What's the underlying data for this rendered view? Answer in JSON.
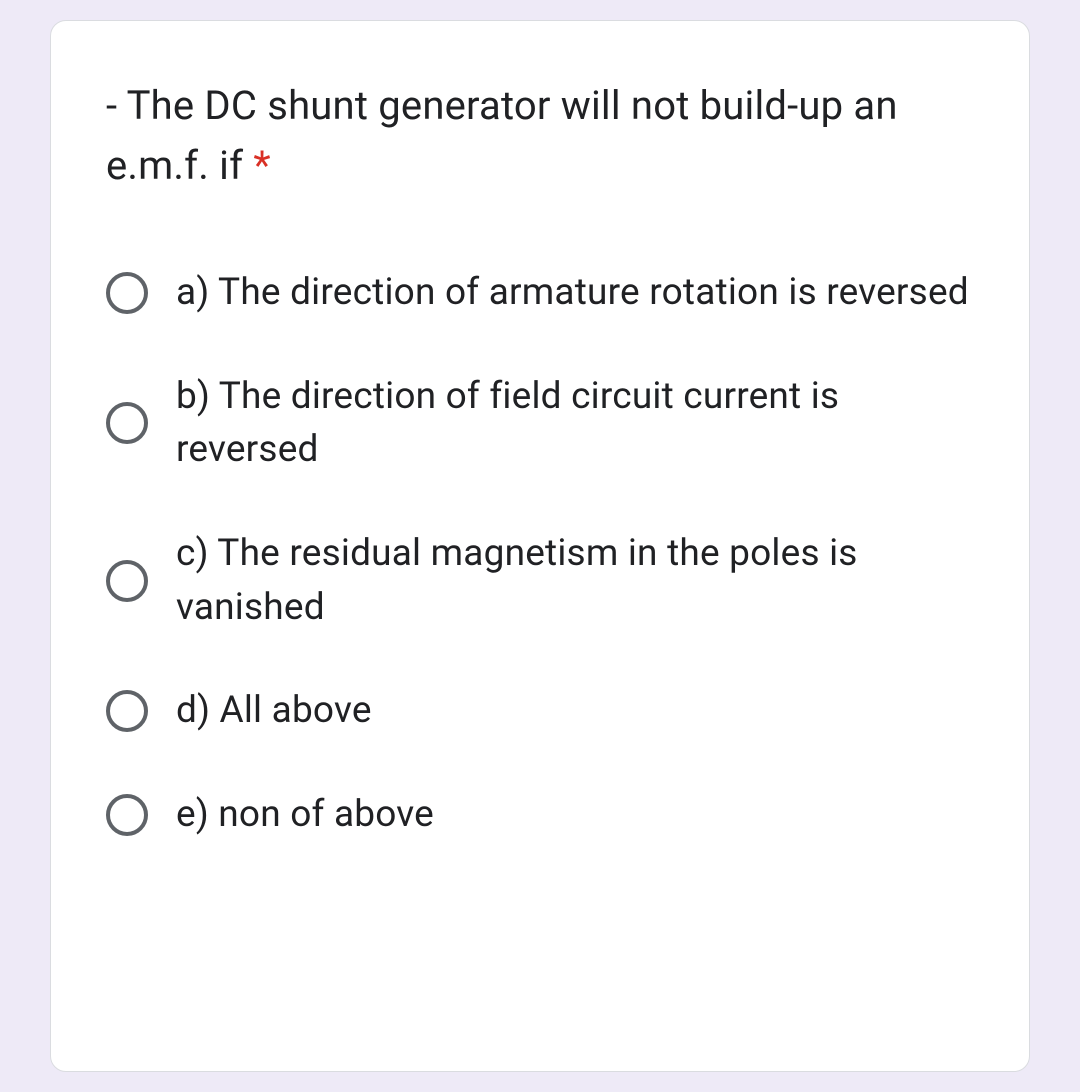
{
  "question": {
    "text": "- The DC shunt generator will not build-up an e.m.f. if ",
    "required_marker": "*"
  },
  "options": [
    {
      "label": "a) The direction of armature rotation is reversed"
    },
    {
      "label": "b) The direction of field circuit current is reversed"
    },
    {
      "label": "c) The residual magnetism in the poles is vanished"
    },
    {
      "label": "d) All above"
    },
    {
      "label": "e) non of above"
    }
  ],
  "colors": {
    "page_background": "#eeeaf7",
    "card_background": "#ffffff",
    "card_border": "#dadce0",
    "text": "#202124",
    "required": "#d93025",
    "radio_border": "#5f6368"
  }
}
